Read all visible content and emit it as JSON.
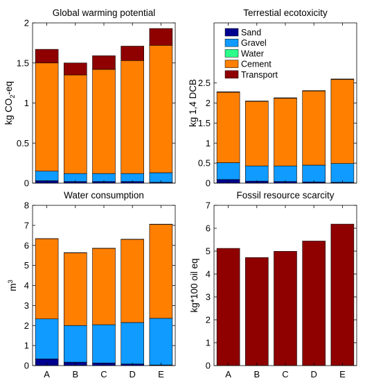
{
  "figure": {
    "colors": {
      "Sand": "#00008f",
      "Gravel": "#0f9bff",
      "Water": "#2bff8a",
      "Cement": "#ff7f00",
      "Transport": "#8f0000"
    }
  },
  "chart_data": [
    {
      "type": "bar",
      "stacked": true,
      "title": "Global warming potential",
      "ylabel": "kg CO2-eq",
      "categories": [
        "A",
        "B",
        "C",
        "D",
        "E"
      ],
      "ylim": [
        0,
        2
      ],
      "yticks": [
        0,
        0.5,
        1,
        1.5,
        2
      ],
      "yticklabels": [
        "0",
        "0.5",
        "1",
        "1.5",
        "2"
      ],
      "show_xticklabels": false,
      "series": [
        {
          "name": "Sand",
          "values": [
            0.03,
            0.02,
            0.02,
            0.02,
            0.01
          ]
        },
        {
          "name": "Gravel",
          "values": [
            0.12,
            0.1,
            0.1,
            0.1,
            0.12
          ]
        },
        {
          "name": "Water",
          "values": [
            0.0,
            0.0,
            0.0,
            0.0,
            0.0
          ]
        },
        {
          "name": "Cement",
          "values": [
            1.35,
            1.23,
            1.3,
            1.41,
            1.59
          ]
        },
        {
          "name": "Transport",
          "values": [
            0.17,
            0.15,
            0.17,
            0.18,
            0.21
          ]
        }
      ]
    },
    {
      "type": "bar",
      "stacked": true,
      "title": "Terrestial ecotoxicity",
      "ylabel": "kg 1,4 DCB",
      "categories": [
        "A",
        "B",
        "C",
        "D",
        "E"
      ],
      "ylim": [
        0,
        4
      ],
      "yticks": [
        0,
        0.5,
        1,
        1.5,
        2,
        2.5
      ],
      "yticklabels": [
        "0",
        "0.5",
        "1",
        "1.5",
        "2",
        "2.5"
      ],
      "show_xticklabels": false,
      "legend": {
        "location": "top-left",
        "entries": [
          "Sand",
          "Gravel",
          "Water",
          "Cement",
          "Transport"
        ]
      },
      "series": [
        {
          "name": "Sand",
          "values": [
            0.09,
            0.05,
            0.04,
            0.03,
            0.02
          ]
        },
        {
          "name": "Gravel",
          "values": [
            0.42,
            0.38,
            0.39,
            0.42,
            0.47
          ]
        },
        {
          "name": "Water",
          "values": [
            0.0,
            0.0,
            0.0,
            0.0,
            0.0
          ]
        },
        {
          "name": "Cement",
          "values": [
            1.76,
            1.61,
            1.69,
            1.85,
            2.1
          ]
        },
        {
          "name": "Transport",
          "values": [
            0.01,
            0.01,
            0.01,
            0.01,
            0.01
          ]
        }
      ]
    },
    {
      "type": "bar",
      "stacked": true,
      "title": "Water consumption",
      "ylabel": "m3",
      "ylabel_base": "m",
      "ylabel_sup": "3",
      "categories": [
        "A",
        "B",
        "C",
        "D",
        "E"
      ],
      "ylim": [
        0,
        8
      ],
      "yticks": [
        0,
        1,
        2,
        3,
        4,
        5,
        6,
        7,
        8
      ],
      "yticklabels": [
        "0",
        "1",
        "2",
        "3",
        "4",
        "5",
        "6",
        "7",
        "8"
      ],
      "show_xticklabels": true,
      "series": [
        {
          "name": "Sand",
          "values": [
            0.33,
            0.17,
            0.13,
            0.08,
            0.03
          ]
        },
        {
          "name": "Gravel",
          "values": [
            2.0,
            1.83,
            1.91,
            2.07,
            2.33
          ]
        },
        {
          "name": "Water",
          "values": [
            0.0,
            0.0,
            0.0,
            0.0,
            0.0
          ]
        },
        {
          "name": "Cement",
          "values": [
            4.0,
            3.63,
            3.81,
            4.15,
            4.69
          ]
        },
        {
          "name": "Transport",
          "values": [
            0.01,
            0.01,
            0.01,
            0.01,
            0.01
          ]
        }
      ]
    },
    {
      "type": "bar",
      "title": "Fossil resource scarcity",
      "ylabel": "kg*100 oil eq",
      "categories": [
        "A",
        "B",
        "C",
        "D",
        "E"
      ],
      "ylim": [
        0,
        7
      ],
      "yticks": [
        0,
        1,
        2,
        3,
        4,
        5,
        6,
        7
      ],
      "yticklabels": [
        "0",
        "1",
        "2",
        "3",
        "4",
        "5",
        "6",
        "7"
      ],
      "show_xticklabels": true,
      "series": [
        {
          "name": "Transport",
          "values": [
            5.12,
            4.72,
            4.99,
            5.44,
            6.18
          ]
        }
      ]
    }
  ]
}
